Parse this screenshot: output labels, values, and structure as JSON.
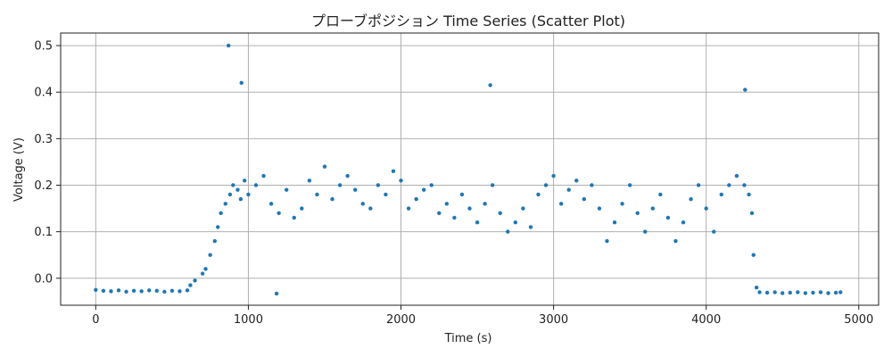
{
  "chart_data": {
    "type": "scatter",
    "title": "プローブポジション Time Series (Scatter Plot)",
    "xlabel": "Time (s)",
    "ylabel": "Voltage (V)",
    "xlim": [
      -230,
      5130
    ],
    "ylim": [
      -0.058,
      0.527
    ],
    "xticks": [
      0,
      1000,
      2000,
      3000,
      4000,
      5000
    ],
    "yticks": [
      0.0,
      0.1,
      0.2,
      0.3,
      0.4,
      0.5
    ],
    "xtick_labels": [
      "0",
      "1000",
      "2000",
      "3000",
      "4000",
      "5000"
    ],
    "ytick_labels": [
      "0.0",
      "0.1",
      "0.2",
      "0.3",
      "0.4",
      "0.5"
    ],
    "grid": true,
    "color": "#1f77b4",
    "series": [
      {
        "x": [
          0,
          50,
          100,
          150,
          200,
          250,
          300,
          350,
          400,
          450,
          500,
          550,
          600,
          620,
          650,
          700,
          720,
          750,
          780,
          800,
          820,
          850,
          880,
          900,
          930,
          950,
          975,
          1000,
          1050,
          1100,
          1150,
          1200,
          1250,
          1300,
          1350,
          1400,
          1450,
          1500,
          1550,
          1600,
          1650,
          1700,
          1750,
          1800,
          1850,
          1900,
          1950,
          2000,
          2050,
          2100,
          2150,
          2200,
          2250,
          2300,
          2350,
          2400,
          2450,
          2500,
          2550,
          2600,
          2650,
          2700,
          2750,
          2800,
          2850,
          2900,
          2950,
          3000,
          3050,
          3100,
          3150,
          3200,
          3250,
          3300,
          3350,
          3400,
          3450,
          3500,
          3550,
          3600,
          3650,
          3700,
          3750,
          3800,
          3850,
          3900,
          3950,
          4000,
          4050,
          4100,
          4150,
          4200,
          4250,
          4280,
          4300,
          4310,
          4330,
          4350,
          4400,
          4450,
          4500,
          4550,
          4600,
          4650,
          4700,
          4750,
          4800,
          4850,
          4880,
          870,
          955,
          1185,
          2585,
          4255
        ],
        "y": [
          -0.025,
          -0.027,
          -0.028,
          -0.026,
          -0.029,
          -0.027,
          -0.028,
          -0.026,
          -0.027,
          -0.029,
          -0.027,
          -0.028,
          -0.026,
          -0.015,
          -0.005,
          0.01,
          0.02,
          0.05,
          0.08,
          0.11,
          0.14,
          0.16,
          0.18,
          0.2,
          0.19,
          0.17,
          0.21,
          0.18,
          0.2,
          0.22,
          0.16,
          0.14,
          0.19,
          0.13,
          0.15,
          0.21,
          0.18,
          0.24,
          0.17,
          0.2,
          0.22,
          0.19,
          0.16,
          0.15,
          0.2,
          0.18,
          0.23,
          0.21,
          0.15,
          0.17,
          0.19,
          0.2,
          0.14,
          0.16,
          0.13,
          0.18,
          0.15,
          0.12,
          0.16,
          0.2,
          0.14,
          0.1,
          0.12,
          0.15,
          0.11,
          0.18,
          0.2,
          0.22,
          0.16,
          0.19,
          0.21,
          0.17,
          0.2,
          0.15,
          0.08,
          0.12,
          0.16,
          0.2,
          0.14,
          0.1,
          0.15,
          0.18,
          0.13,
          0.08,
          0.12,
          0.17,
          0.2,
          0.15,
          0.1,
          0.18,
          0.2,
          0.22,
          0.2,
          0.18,
          0.14,
          0.05,
          -0.02,
          -0.03,
          -0.031,
          -0.03,
          -0.032,
          -0.031,
          -0.03,
          -0.032,
          -0.031,
          -0.03,
          -0.032,
          -0.031,
          -0.03,
          0.5,
          0.42,
          -0.033,
          0.415,
          0.405
        ]
      }
    ]
  }
}
